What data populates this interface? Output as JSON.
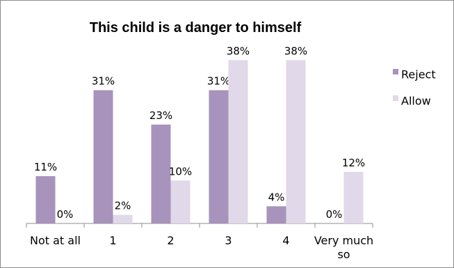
{
  "chart_data": {
    "type": "bar",
    "title": "This child is a danger to himself",
    "xlabel": "",
    "ylabel": "",
    "categories": [
      "Not at all",
      "1",
      "2",
      "3",
      "4",
      "Very much so"
    ],
    "series": [
      {
        "name": "Reject",
        "color": "#a793bb",
        "values": [
          11,
          31,
          23,
          31,
          4,
          0
        ],
        "labels": [
          "11%",
          "31%",
          "23%",
          "31%",
          "4%",
          "0%"
        ]
      },
      {
        "name": "Allow",
        "color": "#e1d8e9",
        "values": [
          0,
          2,
          10,
          38,
          38,
          12
        ],
        "labels": [
          "0%",
          "2%",
          "10%",
          "38%",
          "38%",
          "12%"
        ]
      }
    ],
    "ylim": [
      0,
      40
    ],
    "grid": false,
    "legend_position": "right"
  }
}
